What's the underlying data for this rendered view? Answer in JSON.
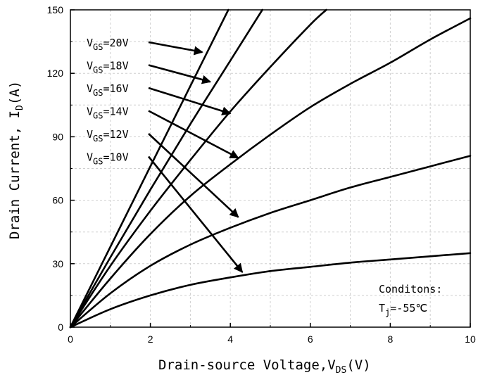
{
  "chart_data": {
    "type": "line",
    "xlabel": {
      "main": "Drain-source Voltage,V",
      "sub": "DS",
      "tail": "(V)"
    },
    "ylabel": {
      "main": "Drain Current, I",
      "sub": "D",
      "tail": "(A)"
    },
    "xlim": [
      0,
      10
    ],
    "ylim": [
      0,
      150
    ],
    "x_ticks": [
      0,
      2,
      4,
      6,
      8,
      10
    ],
    "y_ticks": [
      0,
      30,
      60,
      90,
      120,
      150
    ],
    "grid": true,
    "series": [
      {
        "name": "VGS=20V",
        "label_sub": "GS",
        "label_value": "=20V",
        "x": [
          0,
          1,
          2,
          3,
          3.95
        ],
        "y": [
          0,
          38,
          76,
          114,
          150
        ],
        "arrow_target": [
          3.3,
          130
        ]
      },
      {
        "name": "VGS=18V",
        "label_sub": "GS",
        "label_value": "=18V",
        "x": [
          0,
          1,
          2,
          3,
          4,
          4.8
        ],
        "y": [
          0,
          33,
          65,
          96,
          126,
          150
        ],
        "arrow_target": [
          3.5,
          116
        ]
      },
      {
        "name": "VGS=16V",
        "label_sub": "GS",
        "label_value": "=16V",
        "x": [
          0,
          1,
          2,
          3,
          4,
          5,
          6,
          6.4
        ],
        "y": [
          0,
          29,
          55,
          79,
          102,
          123,
          143,
          150
        ],
        "arrow_target": [
          4.0,
          101
        ]
      },
      {
        "name": "VGS=14V",
        "label_sub": "GS",
        "label_value": "=14V",
        "x": [
          0,
          1,
          2,
          3,
          4,
          5,
          6,
          7,
          8,
          9,
          10
        ],
        "y": [
          0,
          23,
          44,
          62,
          77,
          91,
          104,
          115,
          125,
          136,
          146
        ],
        "arrow_target": [
          4.2,
          80
        ]
      },
      {
        "name": "VGS=12V",
        "label_sub": "GS",
        "label_value": "=12V",
        "x": [
          0,
          1,
          2,
          3,
          4,
          5,
          6,
          7,
          8,
          9,
          10
        ],
        "y": [
          0,
          16,
          29,
          39,
          47,
          54,
          60,
          66,
          71,
          76,
          81
        ],
        "arrow_target": [
          4.2,
          52
        ]
      },
      {
        "name": "VGS=10V",
        "label_sub": "GS",
        "label_value": "=10V",
        "x": [
          0,
          1,
          2,
          3,
          4,
          5,
          6,
          7,
          8,
          9,
          10
        ],
        "y": [
          0,
          8.5,
          15,
          20,
          23.5,
          26.5,
          28.5,
          30.5,
          32,
          33.5,
          35
        ],
        "arrow_target": [
          4.3,
          26
        ]
      }
    ],
    "annotations": [
      {
        "text": "Conditons:"
      },
      {
        "prefix": "T",
        "sub": "j",
        "value": "=-55℃"
      }
    ]
  }
}
